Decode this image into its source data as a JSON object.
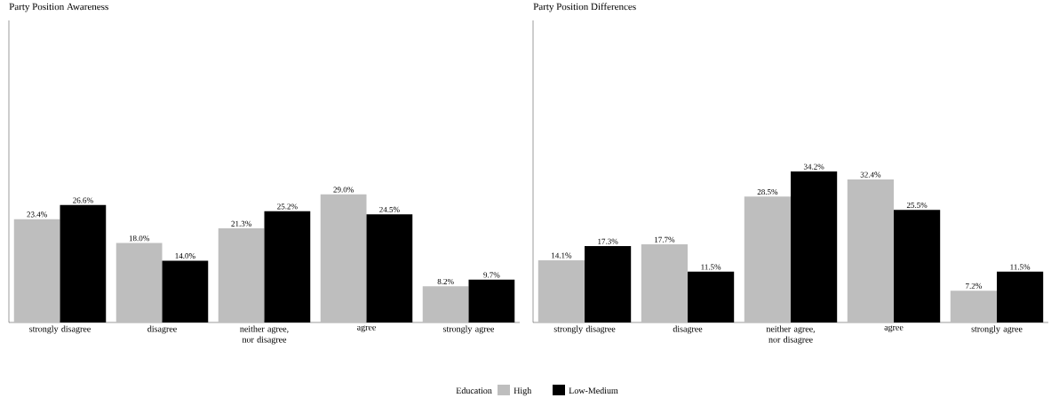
{
  "chart_data": [
    {
      "type": "bar",
      "title": "Party Position Awareness",
      "categories": [
        "strongly disagree",
        "disagree",
        "neither agree, nor disagree",
        "agree",
        "strongly agree"
      ],
      "series": [
        {
          "name": "High",
          "color": "#bebebe",
          "values": [
            23.4,
            18.0,
            21.3,
            29.0,
            8.2
          ],
          "value_labels": [
            "23.4%",
            "18.0%",
            "21.3%",
            "29.0%",
            "8.2%"
          ]
        },
        {
          "name": "Low-Medium",
          "color": "#000000",
          "values": [
            26.6,
            14.0,
            25.2,
            24.5,
            9.7
          ],
          "value_labels": [
            "26.6%",
            "14.0%",
            "25.2%",
            "24.5%",
            "9.7%"
          ]
        }
      ],
      "legend": "bottom",
      "legend_title": "Education",
      "tick_labels": "x"
    },
    {
      "type": "bar",
      "title": "Party Position Differences",
      "categories": [
        "strongly disagree",
        "disagree",
        "neither agree, nor disagree",
        "agree",
        "strongly agree"
      ],
      "series": [
        {
          "color": "#bebebe",
          "values": [
            14.1,
            17.7,
            28.5,
            32.4,
            7.2
          ],
          "value_labels": [
            "14.1%",
            "17.7%",
            "28.5%",
            "32.4%",
            "7.2%"
          ]
        },
        {
          "color": "#000000",
          "values": [
            17.3,
            11.5,
            34.2,
            25.5,
            11.5
          ],
          "value_labels": [
            "17.3%",
            "11.5%",
            "34.2%",
            "25.5%",
            "11.5%"
          ]
        }
      ],
      "tick_labels": "x"
    }
  ]
}
